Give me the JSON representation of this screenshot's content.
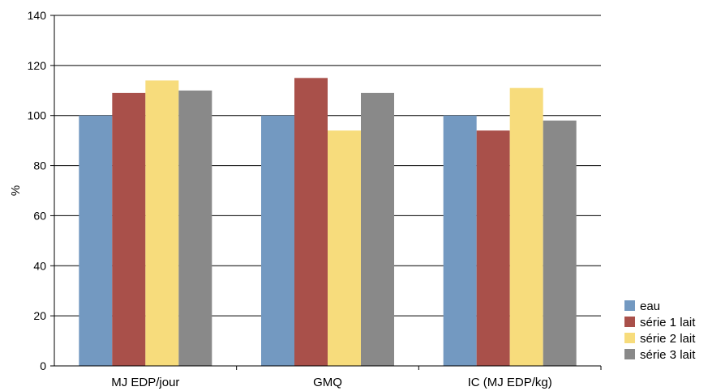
{
  "chart_data": {
    "type": "bar",
    "ylabel": "%",
    "ylim": [
      0,
      140
    ],
    "yticks": [
      0,
      20,
      40,
      60,
      80,
      100,
      120,
      140
    ],
    "grid": true,
    "legend_position": "bottom-right",
    "categories": [
      "MJ EDP/jour",
      "GMQ",
      "IC (MJ EDP/kg)"
    ],
    "series": [
      {
        "name": "eau",
        "color": "#7399C1",
        "values": [
          100,
          100,
          100
        ]
      },
      {
        "name": "série 1 lait",
        "color": "#A9504A",
        "values": [
          109,
          115,
          94
        ]
      },
      {
        "name": "série 2 lait",
        "color": "#F7DC7C",
        "values": [
          114,
          94,
          111
        ]
      },
      {
        "name": "série 3 lait",
        "color": "#898989",
        "values": [
          110,
          109,
          98
        ]
      }
    ]
  }
}
